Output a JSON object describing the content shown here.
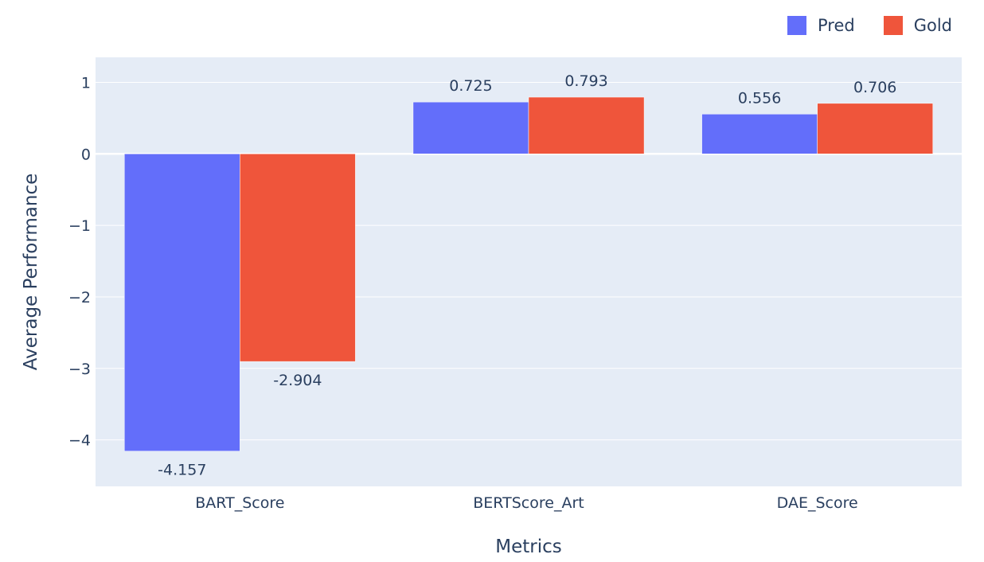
{
  "chart_data": {
    "type": "bar",
    "categories": [
      "BART_Score",
      "BERTScore_Art",
      "DAE_Score"
    ],
    "series": [
      {
        "name": "Pred",
        "values": [
          -4.157,
          0.725,
          0.556
        ],
        "labels": [
          "-4.157",
          "0.725",
          "0.556"
        ],
        "color": "#636efa"
      },
      {
        "name": "Gold",
        "values": [
          -2.904,
          0.793,
          0.706
        ],
        "labels": [
          "-2.904",
          "0.793",
          "0.706"
        ],
        "color": "#ef553b"
      }
    ],
    "title": "",
    "xlabel": "Metrics",
    "ylabel": "Average Performance",
    "ylim": [
      -4.65,
      1.35
    ],
    "yticks": [
      1,
      0,
      -1,
      -2,
      -3,
      -4
    ],
    "ytick_labels": [
      "1",
      "0",
      "−1",
      "−2",
      "−3",
      "−4"
    ],
    "grid": true,
    "legend_position": "top-right",
    "plot_background": "#e5ecf6"
  }
}
